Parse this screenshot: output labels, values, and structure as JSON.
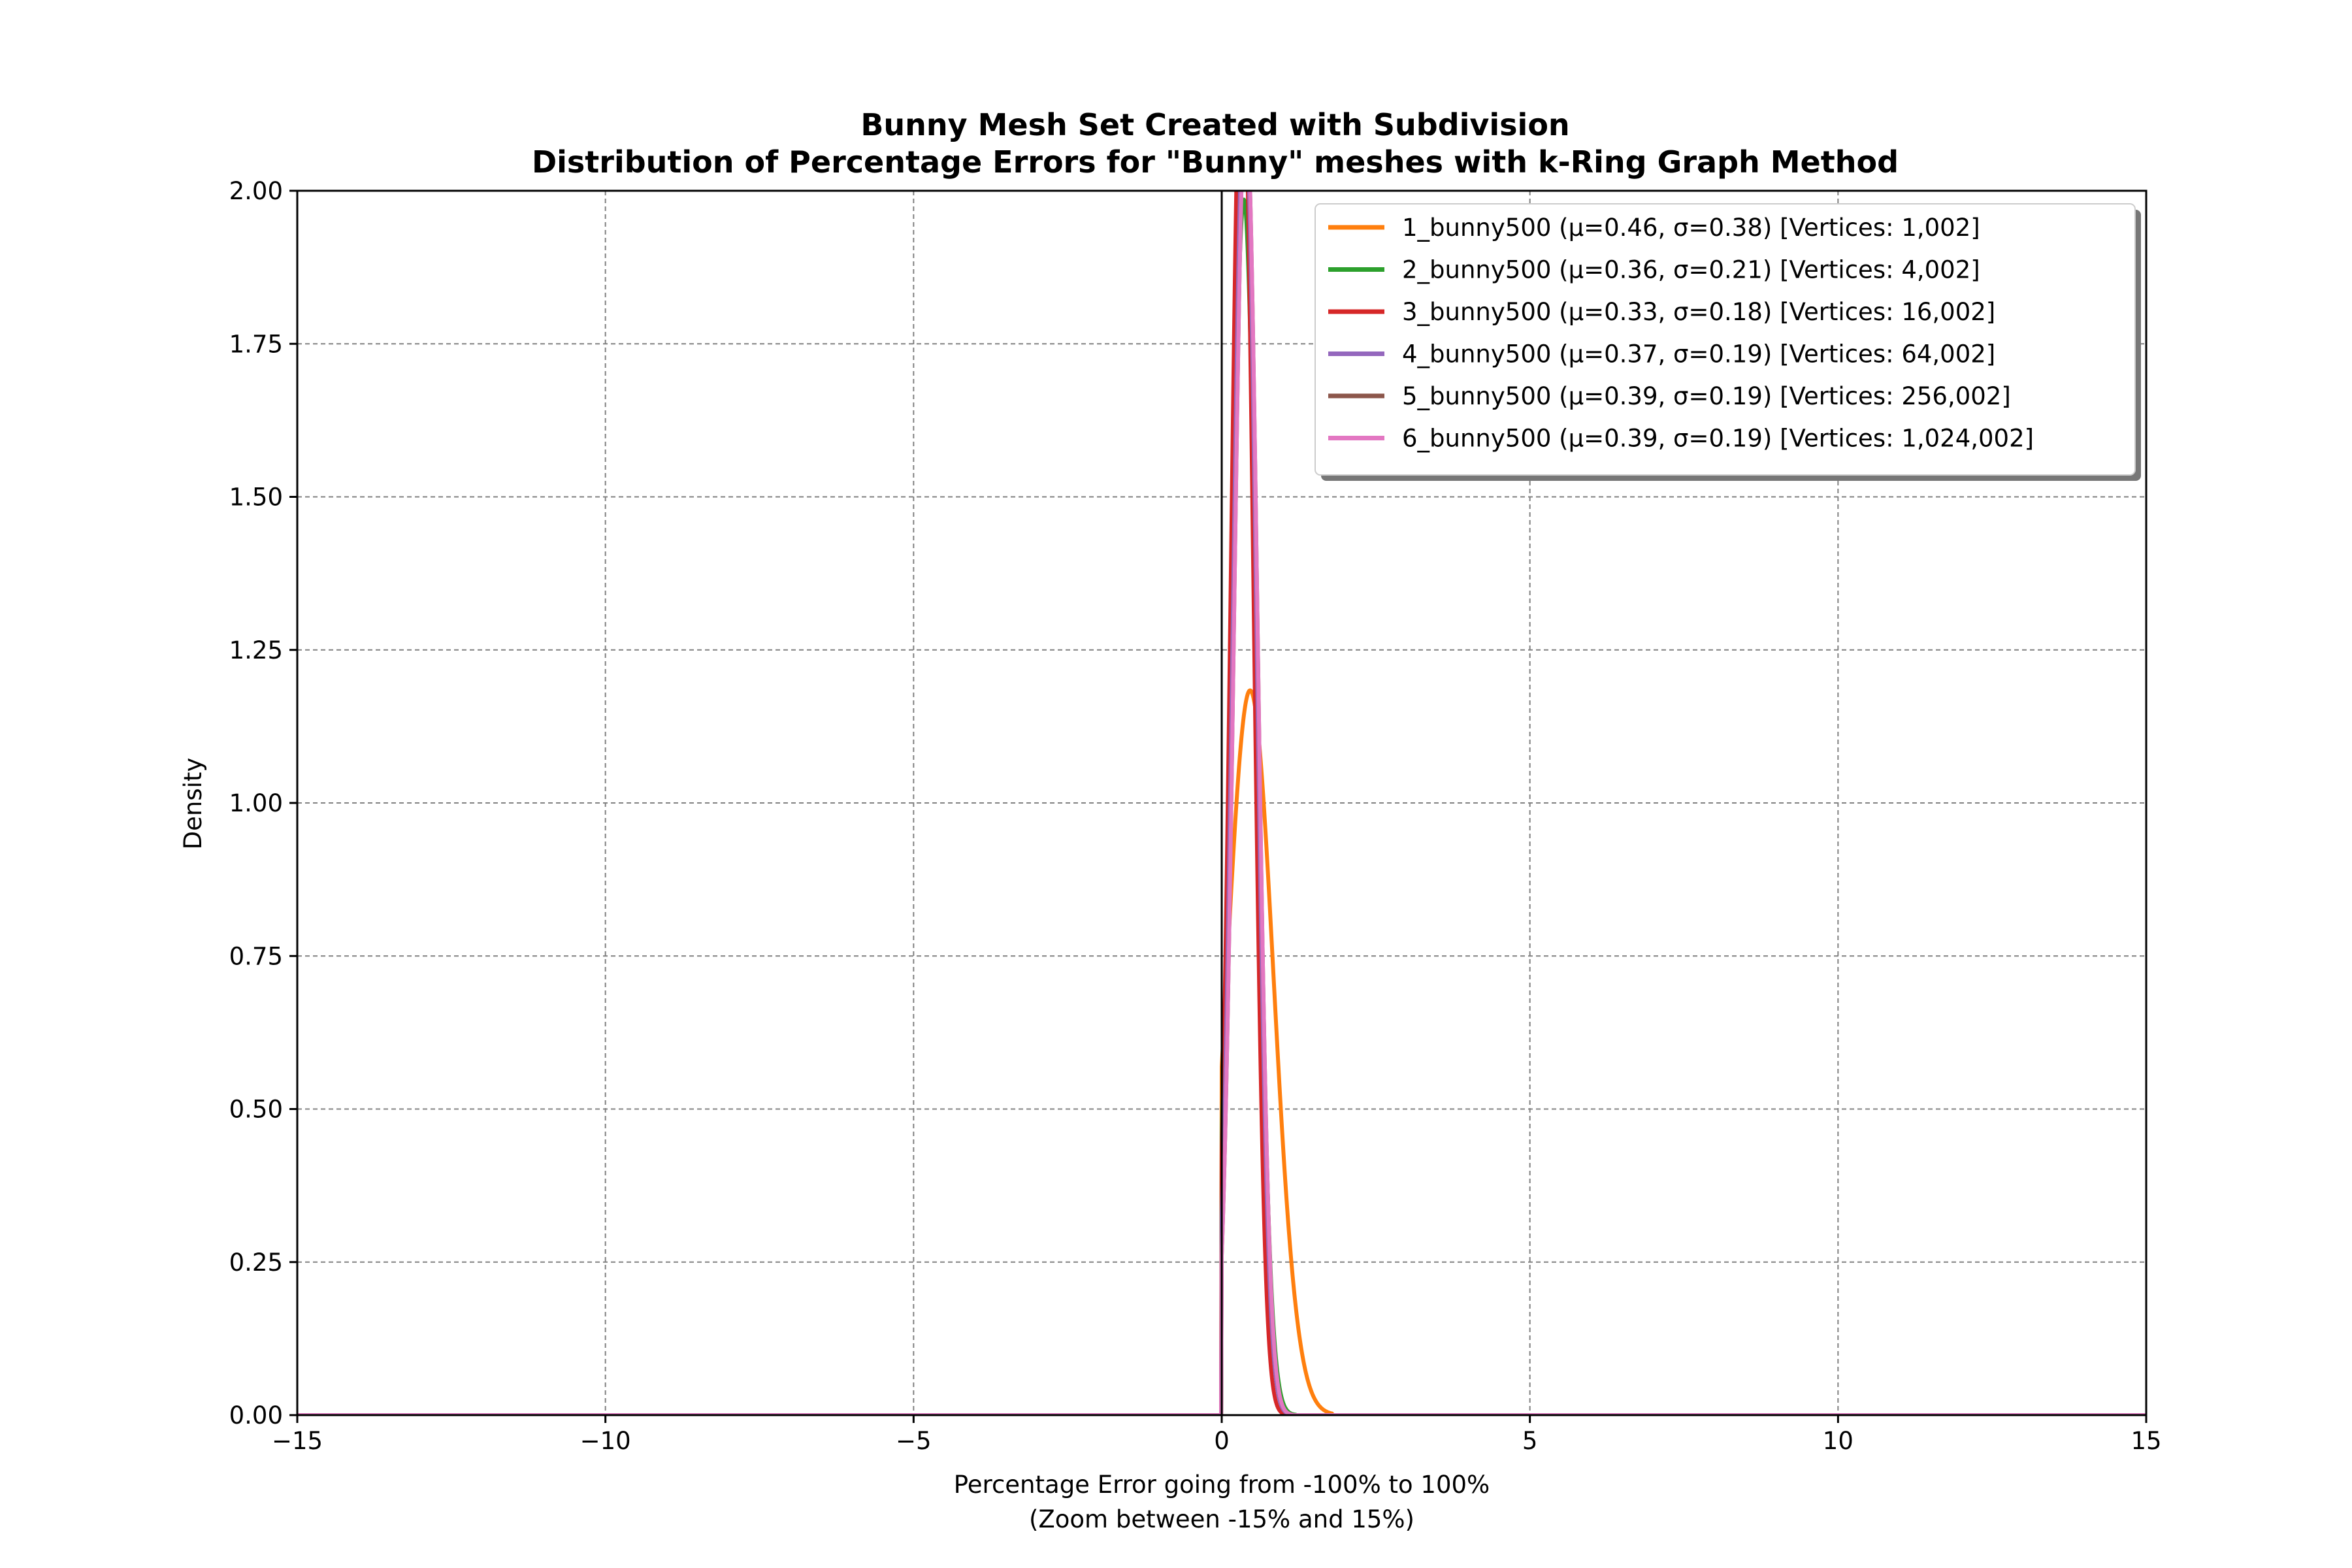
{
  "chart_data": {
    "type": "line",
    "title": "Bunny Mesh Set Created with Subdivision",
    "subtitle": "Distribution of Percentage Errors for \"Bunny\" meshes with k-Ring Graph Method",
    "xlabel": "Percentage Error going from -100% to 100%",
    "xlabel_sub": "(Zoom between -15% and 15%)",
    "ylabel": "Density",
    "xlim": [
      -15,
      15
    ],
    "ylim": [
      0,
      2.0
    ],
    "grid": true,
    "legend_position": "top-right",
    "x_ticks": [
      -15,
      -10,
      -5,
      0,
      5,
      10,
      15
    ],
    "x_tick_labels": [
      "−15",
      "−10",
      "−5",
      "0",
      "5",
      "10",
      "15"
    ],
    "y_ticks": [
      0,
      0.25,
      0.5,
      0.75,
      1.0,
      1.25,
      1.5,
      1.75,
      2.0
    ],
    "y_tick_labels": [
      "0.00",
      "0.25",
      "0.50",
      "0.75",
      "1.00",
      "1.25",
      "1.50",
      "1.75",
      "2.00"
    ],
    "vline_x": 0,
    "series": [
      {
        "name": "1_bunny500 (μ=0.46, σ=0.38) [Vertices: 1,002]",
        "color": "#ff7f0e",
        "mu": 0.46,
        "sigma": 0.38,
        "support": [
          0.0,
          1.8
        ]
      },
      {
        "name": "2_bunny500 (μ=0.36, σ=0.21) [Vertices: 4,002]",
        "color": "#2ca02c",
        "mu": 0.36,
        "sigma": 0.21,
        "support": [
          0.0,
          1.2
        ]
      },
      {
        "name": "3_bunny500 (μ=0.33, σ=0.18) [Vertices: 16,002]",
        "color": "#d62728",
        "mu": 0.33,
        "sigma": 0.18,
        "support": [
          0.0,
          1.1
        ]
      },
      {
        "name": "4_bunny500 (μ=0.37, σ=0.19) [Vertices: 64,002]",
        "color": "#9467bd",
        "mu": 0.37,
        "sigma": 0.19,
        "support": [
          0.0,
          1.15
        ]
      },
      {
        "name": "5_bunny500 (μ=0.39, σ=0.19) [Vertices: 256,002]",
        "color": "#8c564b",
        "mu": 0.39,
        "sigma": 0.19,
        "support": [
          0.0,
          1.15
        ]
      },
      {
        "name": "6_bunny500 (μ=0.39, σ=0.19) [Vertices: 1,024,002]",
        "color": "#e377c2",
        "mu": 0.39,
        "sigma": 0.19,
        "support": [
          0.0,
          1.15
        ]
      }
    ]
  }
}
